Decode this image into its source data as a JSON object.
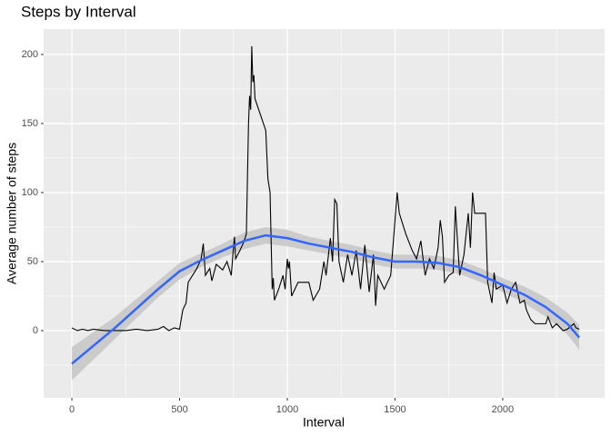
{
  "chart_data": {
    "type": "line",
    "title": "Steps by Interval",
    "x_label": "Interval",
    "y_label": "Average number of steps",
    "xlim": [
      -131,
      2473
    ],
    "ylim": [
      -48.7,
      218.4
    ],
    "xticks": [
      0,
      500,
      1000,
      1500,
      2000
    ],
    "yticks": [
      0,
      50,
      100,
      150,
      200
    ],
    "grid": true,
    "series": [
      {
        "color": "#000000",
        "x": [
          0,
          25,
          50,
          75,
          100,
          150,
          200,
          250,
          300,
          350,
          400,
          425,
          450,
          475,
          500,
          505,
          515,
          530,
          540,
          560,
          580,
          600,
          610,
          620,
          640,
          650,
          670,
          700,
          720,
          740,
          750,
          755,
          760,
          780,
          800,
          810,
          820,
          825,
          830,
          835,
          840,
          845,
          850,
          900,
          910,
          920,
          930,
          935,
          940,
          960,
          980,
          990,
          1000,
          1005,
          1010,
          1020,
          1050,
          1100,
          1120,
          1150,
          1170,
          1180,
          1200,
          1210,
          1220,
          1230,
          1240,
          1260,
          1280,
          1300,
          1320,
          1340,
          1360,
          1380,
          1400,
          1410,
          1420,
          1450,
          1480,
          1500,
          1510,
          1520,
          1550,
          1580,
          1600,
          1620,
          1640,
          1660,
          1680,
          1700,
          1710,
          1720,
          1730,
          1750,
          1770,
          1780,
          1800,
          1820,
          1840,
          1850,
          1860,
          1870,
          1900,
          1920,
          1930,
          1950,
          1960,
          1970,
          1990,
          2000,
          2020,
          2040,
          2060,
          2080,
          2100,
          2110,
          2130,
          2150,
          2200,
          2210,
          2230,
          2250,
          2280,
          2300,
          2330,
          2340,
          2355
        ],
        "values": [
          2,
          0,
          1,
          0,
          1,
          0,
          0,
          0,
          1,
          0,
          1,
          3,
          0,
          2,
          1,
          6,
          15,
          20,
          35,
          40,
          45,
          52,
          63,
          40,
          45,
          36,
          48,
          44,
          50,
          40,
          60,
          68,
          52,
          58,
          65,
          70,
          150,
          170,
          160,
          206,
          180,
          185,
          168,
          145,
          110,
          100,
          30,
          38,
          22,
          30,
          40,
          30,
          52,
          45,
          50,
          25,
          35,
          35,
          22,
          30,
          50,
          40,
          67,
          50,
          95,
          92,
          50,
          35,
          55,
          40,
          58,
          30,
          62,
          28,
          55,
          18,
          40,
          30,
          40,
          80,
          100,
          85,
          70,
          58,
          52,
          65,
          40,
          52,
          45,
          60,
          80,
          68,
          35,
          40,
          42,
          90,
          40,
          55,
          85,
          60,
          100,
          85,
          85,
          85,
          35,
          20,
          42,
          30,
          32,
          33,
          20,
          30,
          35,
          20,
          22,
          15,
          8,
          5,
          5,
          10,
          2,
          5,
          0,
          1,
          5,
          2,
          1
        ]
      }
    ],
    "smooth": {
      "color": "#3366ff",
      "band_color": "#c8c8c8",
      "x": [
        0,
        100,
        200,
        300,
        400,
        500,
        600,
        700,
        800,
        900,
        1000,
        1100,
        1200,
        1300,
        1400,
        1500,
        1600,
        1700,
        1800,
        1900,
        2000,
        2100,
        2200,
        2300,
        2355
      ],
      "values": [
        -24,
        -11,
        2,
        16,
        30,
        43,
        51,
        58,
        65,
        69,
        67,
        63,
        60,
        57,
        53,
        50,
        50,
        49,
        46,
        40,
        33,
        26,
        17,
        5,
        -5
      ],
      "lower": [
        -36,
        -21,
        -6,
        9,
        24,
        37,
        46,
        53,
        59,
        63,
        61,
        58,
        55,
        52,
        48,
        45,
        45,
        44,
        41,
        35,
        28,
        20,
        10,
        -3,
        -14
      ],
      "upper": [
        -12,
        -1,
        10,
        23,
        36,
        49,
        56,
        63,
        71,
        75,
        73,
        68,
        65,
        62,
        58,
        55,
        55,
        54,
        51,
        45,
        38,
        32,
        24,
        13,
        4
      ]
    }
  }
}
